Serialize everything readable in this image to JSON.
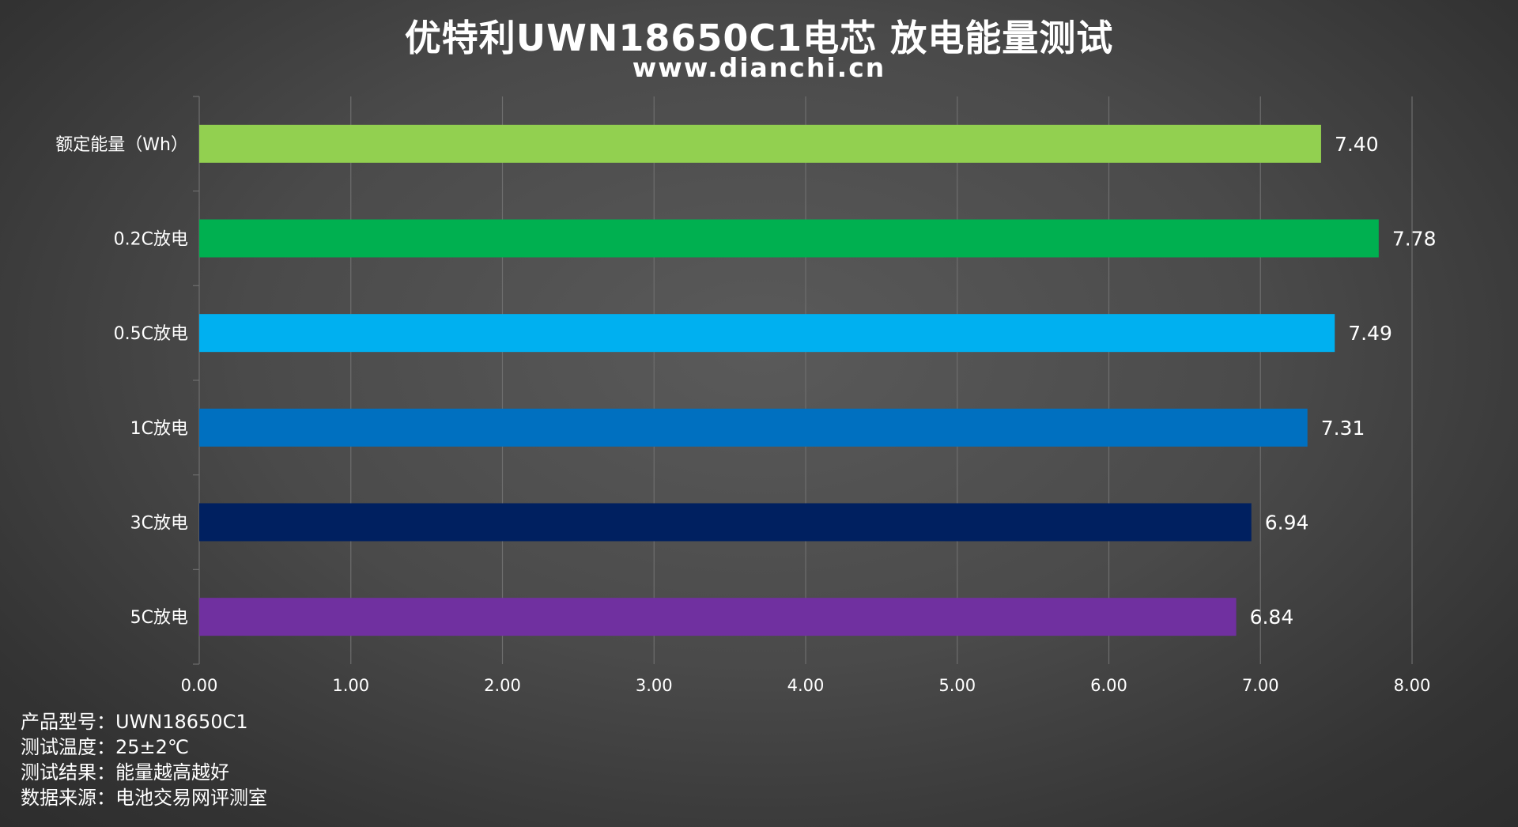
{
  "title": "优特利UWN18650C1电芯 放电能量测试",
  "subtitle": "www.dianchi.cn",
  "chart_data": {
    "type": "bar",
    "orientation": "horizontal",
    "categories": [
      "额定能量（Wh）",
      "0.2C放电",
      "0.5C放电",
      "1C放电",
      "3C放电",
      "5C放电"
    ],
    "values": [
      7.4,
      7.78,
      7.49,
      7.31,
      6.94,
      6.84
    ],
    "value_labels": [
      "7.40",
      "7.78",
      "7.49",
      "7.31",
      "6.94",
      "6.84"
    ],
    "colors": [
      "#92d050",
      "#00b050",
      "#00b0f0",
      "#0070c0",
      "#002060",
      "#7030a0"
    ],
    "xlim": [
      0,
      8
    ],
    "xticks": [
      "0.00",
      "1.00",
      "2.00",
      "3.00",
      "4.00",
      "5.00",
      "6.00",
      "7.00",
      "8.00"
    ],
    "grid": "vertical",
    "legend": "none"
  },
  "info": [
    {
      "label": "产品型号：",
      "value": "UWN18650C1"
    },
    {
      "label": "测试温度：",
      "value": "25±2℃"
    },
    {
      "label": "测试结果：",
      "value": "能量越高越好"
    },
    {
      "label": "数据来源：",
      "value": "电池交易网评测室"
    }
  ]
}
